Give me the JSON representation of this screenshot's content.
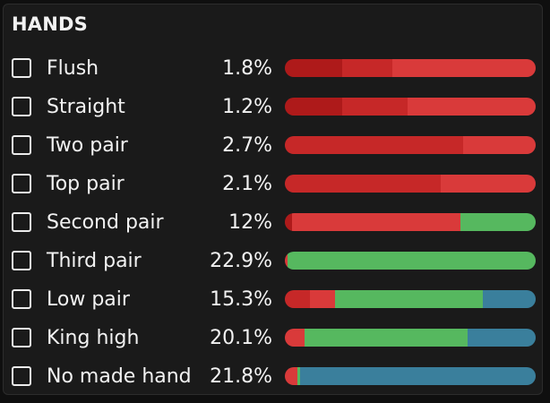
{
  "title": "HANDS",
  "colors": {
    "dark_red": "#ae1a1a",
    "mid_red": "#c62828",
    "red": "#d93a3a",
    "green": "#56b85f",
    "blue": "#3a7f9c"
  },
  "rows": [
    {
      "label": "Flush",
      "pct": "1.8%",
      "segments": [
        {
          "color": "#ae1a1a",
          "fraction": 0.23
        },
        {
          "color": "#c62828",
          "fraction": 0.2
        },
        {
          "color": "#d93a3a",
          "fraction": 0.57
        }
      ]
    },
    {
      "label": "Straight",
      "pct": "1.2%",
      "segments": [
        {
          "color": "#ae1a1a",
          "fraction": 0.23
        },
        {
          "color": "#c62828",
          "fraction": 0.26
        },
        {
          "color": "#d93a3a",
          "fraction": 0.51
        }
      ]
    },
    {
      "label": "Two pair",
      "pct": "2.7%",
      "segments": [
        {
          "color": "#c62828",
          "fraction": 0.71
        },
        {
          "color": "#d93a3a",
          "fraction": 0.29
        }
      ]
    },
    {
      "label": "Top pair",
      "pct": "2.1%",
      "segments": [
        {
          "color": "#c62828",
          "fraction": 0.62
        },
        {
          "color": "#d93a3a",
          "fraction": 0.38
        }
      ]
    },
    {
      "label": "Second pair",
      "pct": "12%",
      "segments": [
        {
          "color": "#ae1a1a",
          "fraction": 0.03
        },
        {
          "color": "#d93a3a",
          "fraction": 0.67
        },
        {
          "color": "#56b85f",
          "fraction": 0.3
        }
      ]
    },
    {
      "label": "Third pair",
      "pct": "22.9%",
      "segments": [
        {
          "color": "#d93a3a",
          "fraction": 0.01
        },
        {
          "color": "#56b85f",
          "fraction": 0.99
        }
      ]
    },
    {
      "label": "Low pair",
      "pct": "15.3%",
      "segments": [
        {
          "color": "#c62828",
          "fraction": 0.1
        },
        {
          "color": "#d93a3a",
          "fraction": 0.1
        },
        {
          "color": "#56b85f",
          "fraction": 0.59
        },
        {
          "color": "#3a7f9c",
          "fraction": 0.21
        }
      ]
    },
    {
      "label": "King high",
      "pct": "20.1%",
      "segments": [
        {
          "color": "#d93a3a",
          "fraction": 0.08
        },
        {
          "color": "#56b85f",
          "fraction": 0.65
        },
        {
          "color": "#3a7f9c",
          "fraction": 0.27
        }
      ]
    },
    {
      "label": "No made hand",
      "pct": "21.8%",
      "segments": [
        {
          "color": "#d93a3a",
          "fraction": 0.05
        },
        {
          "color": "#56b85f",
          "fraction": 0.01
        },
        {
          "color": "#3a7f9c",
          "fraction": 0.94
        }
      ]
    }
  ]
}
